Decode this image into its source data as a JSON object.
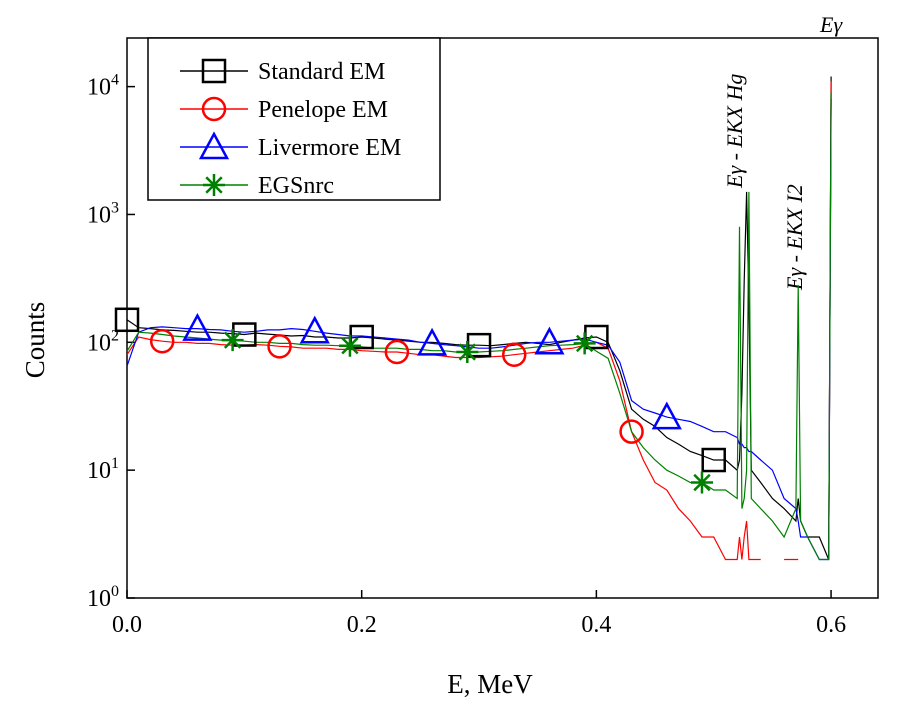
{
  "chart_data": {
    "type": "line",
    "x_label": "E, MeV",
    "y_label": "Counts",
    "log_y": true,
    "xlim": [
      0,
      0.64
    ],
    "ylim": [
      1,
      24000
    ],
    "xticks": [
      {
        "value": 0,
        "label": "0.0"
      },
      0.2,
      0.4,
      0.6
    ],
    "yticks": [
      {
        "value": 1,
        "label": "10^0"
      },
      {
        "value": 10,
        "label": "10^1"
      },
      {
        "value": 100,
        "label": "10^2"
      },
      {
        "value": 1000,
        "label": "10^3"
      },
      {
        "value": 10000,
        "label": "10^4"
      }
    ],
    "legend": "top-left",
    "annotations": [
      "Eγ - EKX Hg",
      "Eγ - EKX I2",
      "Eγ"
    ],
    "x": [
      0,
      0.01,
      0.02,
      0.03,
      0.04,
      0.05,
      0.06,
      0.07,
      0.08,
      0.09,
      0.1,
      0.11,
      0.12,
      0.13,
      0.14,
      0.15,
      0.16,
      0.17,
      0.18,
      0.19,
      0.2,
      0.21,
      0.22,
      0.23,
      0.24,
      0.25,
      0.26,
      0.27,
      0.28,
      0.29,
      0.3,
      0.31,
      0.32,
      0.33,
      0.34,
      0.35,
      0.36,
      0.37,
      0.38,
      0.39,
      0.4,
      0.41,
      0.42,
      0.43,
      0.44,
      0.45,
      0.46,
      0.47,
      0.48,
      0.49,
      0.5,
      0.51,
      0.52,
      0.522,
      0.524,
      0.526,
      0.528,
      0.53,
      0.532,
      0.54,
      0.55,
      0.56,
      0.57,
      0.572,
      0.574,
      0.58,
      0.59,
      0.598,
      0.6
    ],
    "series": [
      {
        "name": "Standard EM",
        "color": "#000000",
        "marker": "square",
        "values": [
          150,
          130,
          128,
          125,
          124,
          122,
          120,
          120,
          118,
          117,
          115,
          118,
          116,
          114,
          112,
          113,
          110,
          110,
          108,
          108,
          110,
          108,
          106,
          104,
          102,
          100,
          100,
          98,
          96,
          95,
          95,
          94,
          96,
          98,
          100,
          98,
          96,
          100,
          104,
          108,
          110,
          100,
          60,
          30,
          25,
          22,
          18,
          16,
          14,
          13,
          12,
          12,
          10,
          12,
          40,
          300,
          1500,
          200,
          10,
          8,
          6,
          5,
          4,
          6,
          4,
          3,
          3,
          2,
          12000
        ]
      },
      {
        "name": "Penelope EM",
        "color": "#ff0000",
        "marker": "circle",
        "values": [
          80,
          110,
          105,
          102,
          100,
          100,
          98,
          98,
          96,
          95,
          95,
          96,
          95,
          93,
          92,
          90,
          90,
          90,
          88,
          88,
          86,
          85,
          84,
          84,
          82,
          80,
          80,
          78,
          76,
          76,
          76,
          77,
          78,
          80,
          82,
          84,
          86,
          88,
          90,
          95,
          100,
          90,
          50,
          20,
          12,
          8,
          7,
          5,
          4,
          3,
          3,
          2,
          2,
          3,
          2,
          3,
          4,
          2,
          2,
          2,
          null,
          2,
          2,
          2,
          null,
          2,
          null,
          2,
          11000
        ]
      },
      {
        "name": "Livermore EM",
        "color": "#0000ff",
        "marker": "triangle",
        "values": [
          65,
          120,
          130,
          132,
          130,
          128,
          128,
          126,
          125,
          122,
          120,
          122,
          125,
          125,
          128,
          126,
          122,
          118,
          115,
          112,
          112,
          110,
          108,
          106,
          104,
          100,
          98,
          96,
          94,
          92,
          90,
          90,
          92,
          95,
          98,
          100,
          100,
          102,
          104,
          106,
          100,
          95,
          70,
          35,
          30,
          28,
          26,
          25,
          24,
          22,
          20,
          20,
          18,
          16,
          16,
          15,
          15,
          14,
          14,
          12,
          10,
          6,
          5,
          4,
          3,
          3,
          2,
          2,
          8000
        ]
      },
      {
        "name": "EGSnrc",
        "color": "#008000",
        "marker": "star",
        "values": [
          85,
          120,
          118,
          115,
          112,
          110,
          108,
          106,
          104,
          104,
          102,
          100,
          100,
          98,
          98,
          96,
          95,
          95,
          94,
          94,
          92,
          90,
          90,
          90,
          88,
          88,
          86,
          86,
          84,
          84,
          84,
          85,
          86,
          88,
          90,
          92,
          94,
          95,
          96,
          98,
          85,
          75,
          40,
          20,
          15,
          12,
          10,
          9,
          8,
          8,
          7,
          7,
          6,
          800,
          5,
          6,
          10,
          1500,
          6,
          5,
          4,
          3,
          5,
          280,
          4,
          3,
          2,
          2,
          9000
        ]
      }
    ]
  }
}
